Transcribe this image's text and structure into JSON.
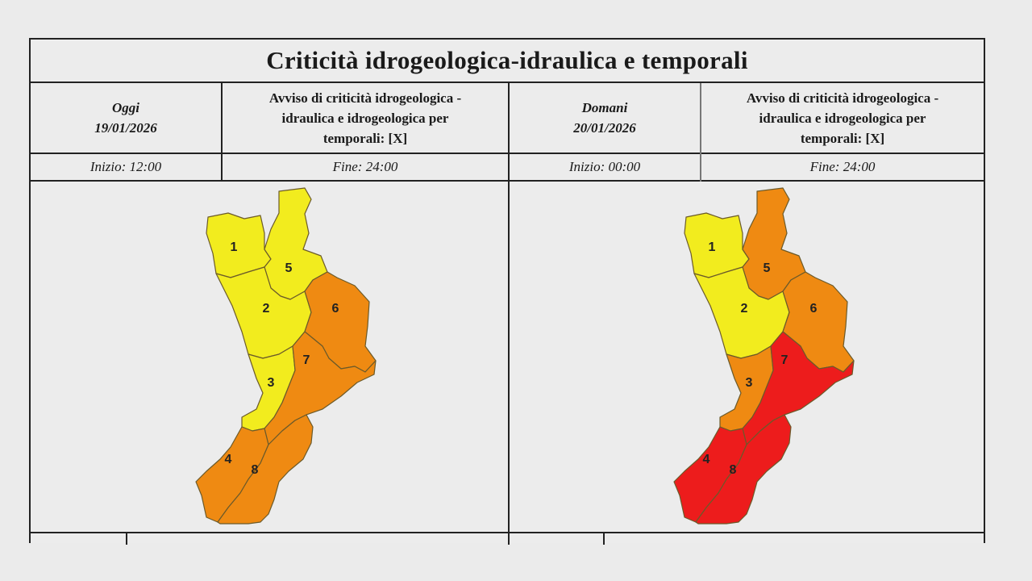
{
  "title": "Criticità idrogeologica-idraulica e temporali",
  "warning_text": [
    "Avviso di criticità idrogeologica -",
    "idraulica e idrogeologica per",
    "temporali: [X]"
  ],
  "days": [
    {
      "label": "Oggi",
      "date": "19/01/2026",
      "start": "Inizio: 12:00",
      "end": "Fine: 24:00",
      "zones": {
        "1": "yellow",
        "2": "yellow",
        "3": "yellow",
        "4": "orange",
        "5": "yellow",
        "6": "orange",
        "7": "orange",
        "8": "orange"
      }
    },
    {
      "label": "Domani",
      "date": "20/01/2026",
      "start": "Inizio: 00:00",
      "end": "Fine: 24:00",
      "zones": {
        "1": "yellow",
        "2": "yellow",
        "3": "orange",
        "4": "red",
        "5": "orange",
        "6": "orange",
        "7": "red",
        "8": "red"
      }
    }
  ],
  "colors": {
    "yellow": "#f2ec1e",
    "orange": "#ef8a12",
    "red": "#ed1c1c"
  },
  "zone_labels": [
    "1",
    "2",
    "3",
    "4",
    "5",
    "6",
    "7",
    "8"
  ]
}
